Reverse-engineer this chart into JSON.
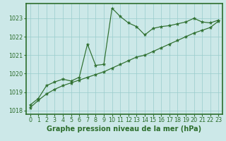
{
  "line1_x": [
    0,
    1,
    2,
    3,
    4,
    5,
    6,
    7,
    8,
    9,
    10,
    11,
    12,
    13,
    14,
    15,
    16,
    17,
    18,
    19,
    20,
    21,
    22,
    23
  ],
  "line1_y": [
    1018.3,
    1018.65,
    1019.35,
    1019.55,
    1019.7,
    1019.6,
    1019.8,
    1021.6,
    1020.45,
    1020.5,
    1023.55,
    1023.1,
    1022.75,
    1022.55,
    1022.1,
    1022.45,
    1022.55,
    1022.6,
    1022.7,
    1022.8,
    1023.0,
    1022.8,
    1022.75,
    1022.9
  ],
  "line2_x": [
    0,
    1,
    2,
    3,
    4,
    5,
    6,
    7,
    8,
    9,
    10,
    11,
    12,
    13,
    14,
    15,
    16,
    17,
    18,
    19,
    20,
    21,
    22,
    23
  ],
  "line2_y": [
    1018.15,
    1018.55,
    1018.9,
    1019.15,
    1019.35,
    1019.5,
    1019.65,
    1019.8,
    1019.95,
    1020.1,
    1020.3,
    1020.5,
    1020.7,
    1020.9,
    1021.0,
    1021.2,
    1021.4,
    1021.6,
    1021.8,
    1022.0,
    1022.2,
    1022.35,
    1022.5,
    1022.85
  ],
  "line_color": "#2d6e2d",
  "bg_color": "#cce8e8",
  "grid_color": "#99cccc",
  "xlabel": "Graphe pression niveau de la mer (hPa)",
  "xlim_min": -0.5,
  "xlim_max": 23.5,
  "ylim_min": 1017.8,
  "ylim_max": 1023.8,
  "yticks": [
    1018,
    1019,
    1020,
    1021,
    1022,
    1023
  ],
  "xticks": [
    0,
    1,
    2,
    3,
    4,
    5,
    6,
    7,
    8,
    9,
    10,
    11,
    12,
    13,
    14,
    15,
    16,
    17,
    18,
    19,
    20,
    21,
    22,
    23
  ],
  "xlabel_fontsize": 7.0,
  "tick_fontsize": 5.8,
  "axis_bar_color": "#2d6e2d",
  "axis_bar_height": 0.13
}
